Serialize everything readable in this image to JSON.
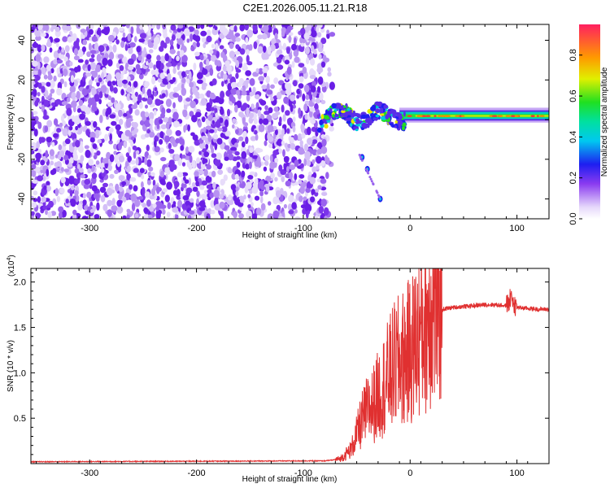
{
  "title": "C2E1.2026.005.11.21.R18",
  "colors": {
    "spectrogram_purple": "#7a2fe8",
    "spectrogram_light": "#d9c4f7",
    "snr_line": "#e03030"
  },
  "chart_data": [
    {
      "type": "heatmap",
      "xlabel": "Height of straight line (km)",
      "ylabel": "Frequency (Hz)",
      "xlim": [
        -355,
        130
      ],
      "ylim": [
        -50,
        48
      ],
      "x_ticks": [
        -300,
        -200,
        -100,
        0,
        100
      ],
      "x_tick_labels": [
        "-300",
        "-200",
        "-100",
        "0",
        "100"
      ],
      "y_ticks": [
        -40,
        -20,
        0,
        20,
        40
      ],
      "y_tick_labels": [
        "-40",
        "-20",
        "0",
        "20",
        "40"
      ],
      "colorbar": {
        "label": "Normalized spectral amplitude",
        "range": [
          0,
          0.95
        ],
        "ticks": [
          0.0,
          0.2,
          0.4,
          0.6,
          0.8
        ],
        "tick_labels": [
          "0.0",
          "0.2",
          "0.4",
          "0.6",
          "0.8"
        ]
      },
      "features": {
        "noise_region_x": [
          -355,
          -80
        ],
        "carrier_line_freq_hz": 1.5,
        "carrier_start_x": -85,
        "image_line": [
          [
            -45,
            -19
          ],
          [
            -40,
            -25
          ],
          [
            -28,
            -40
          ]
        ]
      }
    },
    {
      "type": "line",
      "xlabel": "Height of straight line (km)",
      "ylabel": "SNR (10 * v/v)",
      "multiplier_label": "(x10",
      "multiplier_exp": "4",
      "multiplier_close": ")",
      "xlim": [
        -355,
        130
      ],
      "ylim": [
        0,
        2.15
      ],
      "x_ticks": [
        -300,
        -200,
        -100,
        0,
        100
      ],
      "x_tick_labels": [
        "-300",
        "-200",
        "-100",
        "0",
        "100"
      ],
      "y_ticks": [
        0.5,
        1.0,
        1.5,
        2.0
      ],
      "y_tick_labels": [
        "0.5",
        "1.0",
        "1.5",
        "2.0"
      ],
      "series": [
        {
          "name": "SNR",
          "x": [
            -355,
            -100,
            -80,
            -65,
            -55,
            -50,
            -45,
            -40,
            -35,
            -30,
            -25,
            -20,
            -15,
            -10,
            -5,
            0,
            5,
            10,
            15,
            20,
            25,
            30,
            40,
            50,
            60,
            70,
            80,
            90,
            95,
            100,
            110,
            120,
            130
          ],
          "y": [
            0.02,
            0.03,
            0.03,
            0.05,
            0.15,
            0.3,
            0.45,
            0.55,
            0.6,
            0.7,
            0.8,
            0.9,
            1.0,
            1.05,
            1.1,
            1.15,
            1.25,
            1.35,
            1.5,
            1.6,
            1.65,
            1.7,
            1.72,
            1.73,
            1.74,
            1.75,
            1.75,
            1.74,
            1.8,
            1.72,
            1.71,
            1.7,
            1.7
          ]
        }
      ]
    }
  ]
}
